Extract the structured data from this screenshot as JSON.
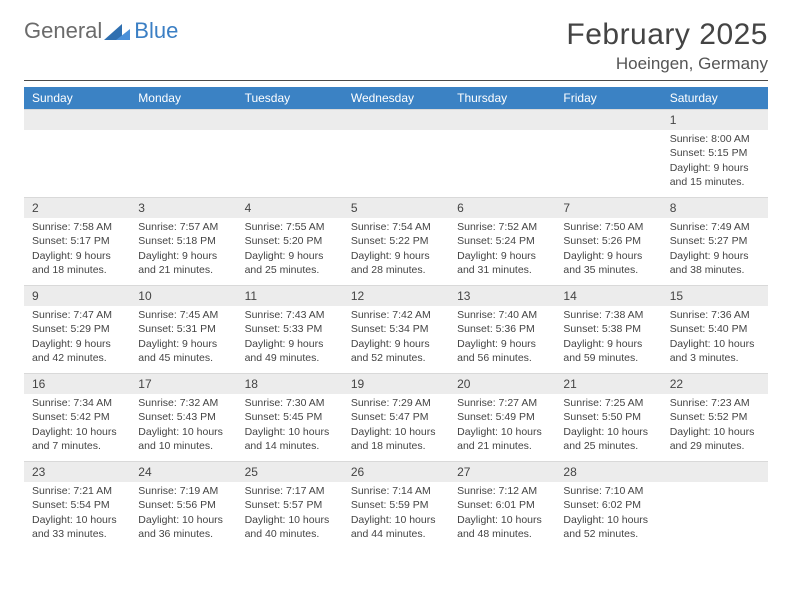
{
  "brand": {
    "word1": "General",
    "word2": "Blue"
  },
  "title": {
    "month": "February 2025",
    "location": "Hoeingen, Germany"
  },
  "colors": {
    "header_bg": "#3b82c4",
    "header_fg": "#ffffff",
    "strip_bg": "#ececec",
    "text": "#444444",
    "logo_gray": "#6b6b6b",
    "logo_blue": "#3b7fc4"
  },
  "weekdays": [
    "Sunday",
    "Monday",
    "Tuesday",
    "Wednesday",
    "Thursday",
    "Friday",
    "Saturday"
  ],
  "weeks": [
    [
      {
        "day": "",
        "lines": []
      },
      {
        "day": "",
        "lines": []
      },
      {
        "day": "",
        "lines": []
      },
      {
        "day": "",
        "lines": []
      },
      {
        "day": "",
        "lines": []
      },
      {
        "day": "",
        "lines": []
      },
      {
        "day": "1",
        "lines": [
          "Sunrise: 8:00 AM",
          "Sunset: 5:15 PM",
          "Daylight: 9 hours and 15 minutes."
        ]
      }
    ],
    [
      {
        "day": "2",
        "lines": [
          "Sunrise: 7:58 AM",
          "Sunset: 5:17 PM",
          "Daylight: 9 hours and 18 minutes."
        ]
      },
      {
        "day": "3",
        "lines": [
          "Sunrise: 7:57 AM",
          "Sunset: 5:18 PM",
          "Daylight: 9 hours and 21 minutes."
        ]
      },
      {
        "day": "4",
        "lines": [
          "Sunrise: 7:55 AM",
          "Sunset: 5:20 PM",
          "Daylight: 9 hours and 25 minutes."
        ]
      },
      {
        "day": "5",
        "lines": [
          "Sunrise: 7:54 AM",
          "Sunset: 5:22 PM",
          "Daylight: 9 hours and 28 minutes."
        ]
      },
      {
        "day": "6",
        "lines": [
          "Sunrise: 7:52 AM",
          "Sunset: 5:24 PM",
          "Daylight: 9 hours and 31 minutes."
        ]
      },
      {
        "day": "7",
        "lines": [
          "Sunrise: 7:50 AM",
          "Sunset: 5:26 PM",
          "Daylight: 9 hours and 35 minutes."
        ]
      },
      {
        "day": "8",
        "lines": [
          "Sunrise: 7:49 AM",
          "Sunset: 5:27 PM",
          "Daylight: 9 hours and 38 minutes."
        ]
      }
    ],
    [
      {
        "day": "9",
        "lines": [
          "Sunrise: 7:47 AM",
          "Sunset: 5:29 PM",
          "Daylight: 9 hours and 42 minutes."
        ]
      },
      {
        "day": "10",
        "lines": [
          "Sunrise: 7:45 AM",
          "Sunset: 5:31 PM",
          "Daylight: 9 hours and 45 minutes."
        ]
      },
      {
        "day": "11",
        "lines": [
          "Sunrise: 7:43 AM",
          "Sunset: 5:33 PM",
          "Daylight: 9 hours and 49 minutes."
        ]
      },
      {
        "day": "12",
        "lines": [
          "Sunrise: 7:42 AM",
          "Sunset: 5:34 PM",
          "Daylight: 9 hours and 52 minutes."
        ]
      },
      {
        "day": "13",
        "lines": [
          "Sunrise: 7:40 AM",
          "Sunset: 5:36 PM",
          "Daylight: 9 hours and 56 minutes."
        ]
      },
      {
        "day": "14",
        "lines": [
          "Sunrise: 7:38 AM",
          "Sunset: 5:38 PM",
          "Daylight: 9 hours and 59 minutes."
        ]
      },
      {
        "day": "15",
        "lines": [
          "Sunrise: 7:36 AM",
          "Sunset: 5:40 PM",
          "Daylight: 10 hours and 3 minutes."
        ]
      }
    ],
    [
      {
        "day": "16",
        "lines": [
          "Sunrise: 7:34 AM",
          "Sunset: 5:42 PM",
          "Daylight: 10 hours and 7 minutes."
        ]
      },
      {
        "day": "17",
        "lines": [
          "Sunrise: 7:32 AM",
          "Sunset: 5:43 PM",
          "Daylight: 10 hours and 10 minutes."
        ]
      },
      {
        "day": "18",
        "lines": [
          "Sunrise: 7:30 AM",
          "Sunset: 5:45 PM",
          "Daylight: 10 hours and 14 minutes."
        ]
      },
      {
        "day": "19",
        "lines": [
          "Sunrise: 7:29 AM",
          "Sunset: 5:47 PM",
          "Daylight: 10 hours and 18 minutes."
        ]
      },
      {
        "day": "20",
        "lines": [
          "Sunrise: 7:27 AM",
          "Sunset: 5:49 PM",
          "Daylight: 10 hours and 21 minutes."
        ]
      },
      {
        "day": "21",
        "lines": [
          "Sunrise: 7:25 AM",
          "Sunset: 5:50 PM",
          "Daylight: 10 hours and 25 minutes."
        ]
      },
      {
        "day": "22",
        "lines": [
          "Sunrise: 7:23 AM",
          "Sunset: 5:52 PM",
          "Daylight: 10 hours and 29 minutes."
        ]
      }
    ],
    [
      {
        "day": "23",
        "lines": [
          "Sunrise: 7:21 AM",
          "Sunset: 5:54 PM",
          "Daylight: 10 hours and 33 minutes."
        ]
      },
      {
        "day": "24",
        "lines": [
          "Sunrise: 7:19 AM",
          "Sunset: 5:56 PM",
          "Daylight: 10 hours and 36 minutes."
        ]
      },
      {
        "day": "25",
        "lines": [
          "Sunrise: 7:17 AM",
          "Sunset: 5:57 PM",
          "Daylight: 10 hours and 40 minutes."
        ]
      },
      {
        "day": "26",
        "lines": [
          "Sunrise: 7:14 AM",
          "Sunset: 5:59 PM",
          "Daylight: 10 hours and 44 minutes."
        ]
      },
      {
        "day": "27",
        "lines": [
          "Sunrise: 7:12 AM",
          "Sunset: 6:01 PM",
          "Daylight: 10 hours and 48 minutes."
        ]
      },
      {
        "day": "28",
        "lines": [
          "Sunrise: 7:10 AM",
          "Sunset: 6:02 PM",
          "Daylight: 10 hours and 52 minutes."
        ]
      },
      {
        "day": "",
        "lines": []
      }
    ]
  ]
}
